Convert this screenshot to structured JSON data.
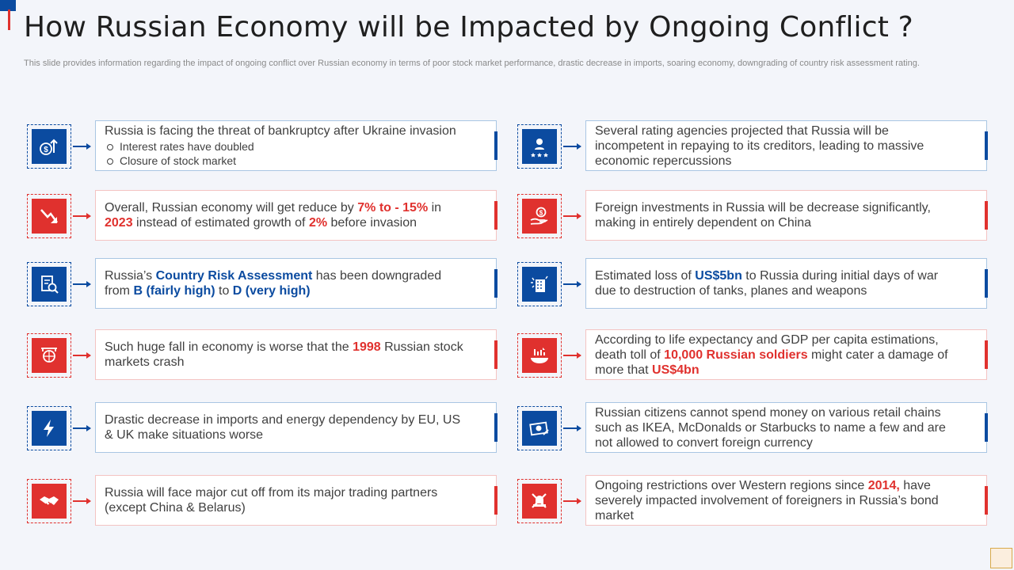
{
  "title": "How Russian Economy will be Impacted by Ongoing Conflict ?",
  "subtitle": "This slide provides information regarding the impact of ongoing conflict over Russian economy in terms of poor stock market performance, drastic decrease in imports, soaring economy, downgrading of country risk assessment rating.",
  "colors": {
    "blue": "#0b4ba0",
    "red": "#e0312e",
    "blue_border": "#a9c6e3",
    "red_border": "#f4c3c2"
  },
  "left": [
    {
      "icon": "dollar-growth-icon",
      "main": "Russia is facing the threat of bankruptcy after Ukraine invasion",
      "bullets": [
        "Interest rates have doubled",
        "Closure of stock market"
      ]
    },
    {
      "icon": "decline-arrow-icon",
      "p1": "Overall, Russian economy will get reduce by ",
      "h1": "7% to - 15%",
      "p2": " in ",
      "h2": "2023",
      "p3": " instead of estimated growth of ",
      "h3": "2%",
      "p4": " before invasion"
    },
    {
      "icon": "risk-assessment-icon",
      "p1": "Russia’s ",
      "h1": "Country Risk Assessment",
      "p2": " has been downgraded from ",
      "h2": "B (fairly high)",
      "p3": " to ",
      "h3": "D (very high)"
    },
    {
      "icon": "market-crash-icon",
      "p1": "Such huge fall in economy is worse that the ",
      "h1": "1998",
      "p2": " Russian stock markets crash"
    },
    {
      "icon": "lightning-bolt-icon",
      "text": "Drastic decrease in imports and energy dependency by EU, US & UK make situations worse"
    },
    {
      "icon": "handshake-icon",
      "text": "Russia will face major cut off from its major trading partners (except China & Belarus)"
    }
  ],
  "right": [
    {
      "icon": "rating-agency-icon",
      "text": "Several rating agencies projected that Russia will be incompetent in repaying to its creditors, leading to massive economic repercussions"
    },
    {
      "icon": "investment-hand-icon",
      "text": "Foreign investments  in Russia will be decrease significantly, making in entirely dependent on China"
    },
    {
      "icon": "destruction-icon",
      "p1": "Estimated loss of ",
      "h1": "US$5bn",
      "p2": " to Russia during initial days of war due to destruction of tanks, planes and weapons"
    },
    {
      "icon": "death-toll-chart-icon",
      "p1": "According to life expectancy and GDP per capita estimations, death toll of ",
      "h1": "10,000 Russian soldiers",
      "p2": " might cater a damage of more that ",
      "h2": "US$4bn"
    },
    {
      "icon": "money-bill-icon",
      "text": "Russian citizens cannot spend money on various retail chains such as IKEA, McDonalds or Starbucks to name a few and are not allowed to convert foreign currency"
    },
    {
      "icon": "bond-restriction-icon",
      "p1": "Ongoing restrictions over Western regions since ",
      "h1": "2014,",
      "p2": " have severely impacted involvement  of foreigners in Russia’s bond market"
    }
  ]
}
